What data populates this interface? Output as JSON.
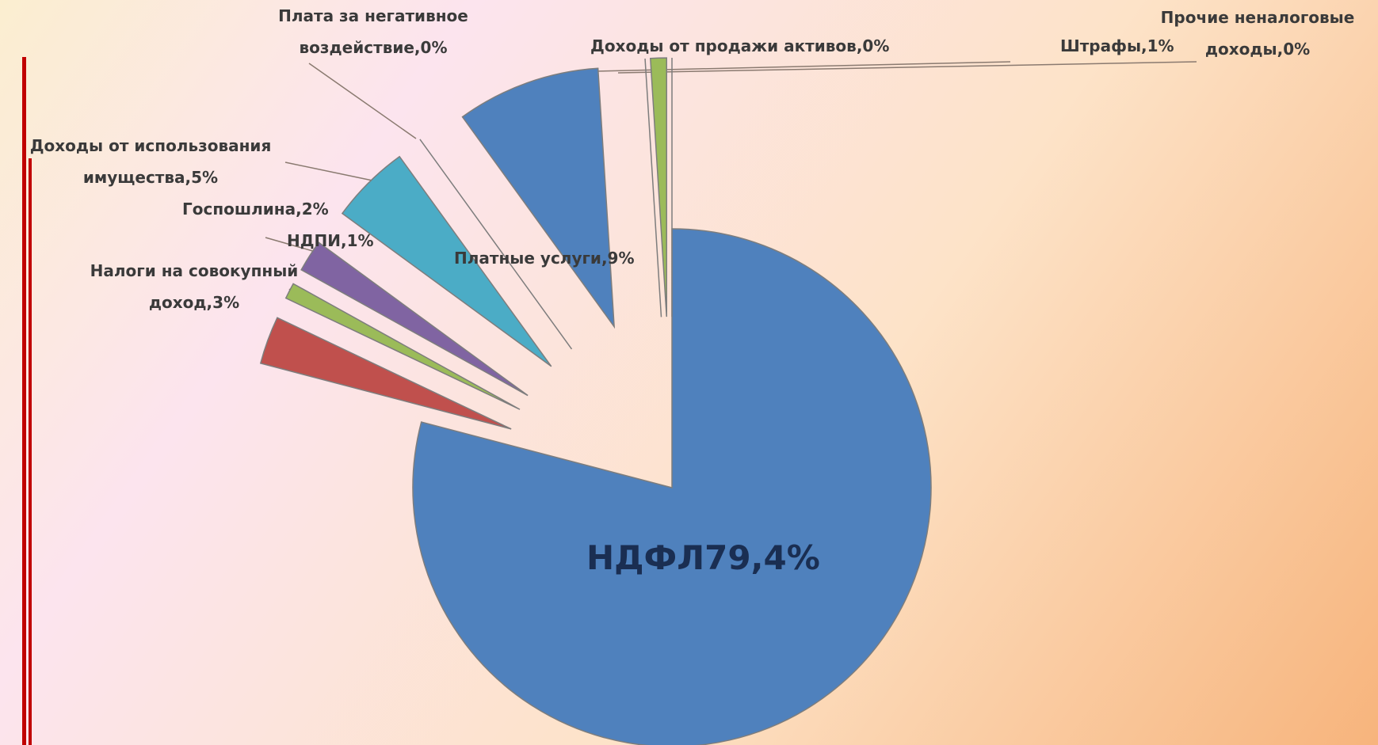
{
  "chart_data": {
    "type": "pie",
    "values": [
      79.4,
      3,
      1,
      2,
      5,
      0,
      9,
      0,
      1,
      0
    ],
    "value_labels": [
      "НДФЛ79,4%",
      "Налоги на совокупный доход,3%",
      "НДПИ,1%",
      "Госпошлина,2%",
      "Доходы от использования имущества,5%",
      "Плата за негативное воздействие,0%",
      "Платные услуги,9%",
      "Доходы от продажи активов,0%",
      "Штрафы,1%",
      "Прочие неналоговые доходы,0%"
    ],
    "colors": [
      "#4f81bd",
      "#c0504d",
      "#9bbb59",
      "#8064a2",
      "#4bacc6",
      "#d99a70",
      "#4f81bd",
      "#c0504d",
      "#9bbb59",
      "#8064a2"
    ]
  }
}
